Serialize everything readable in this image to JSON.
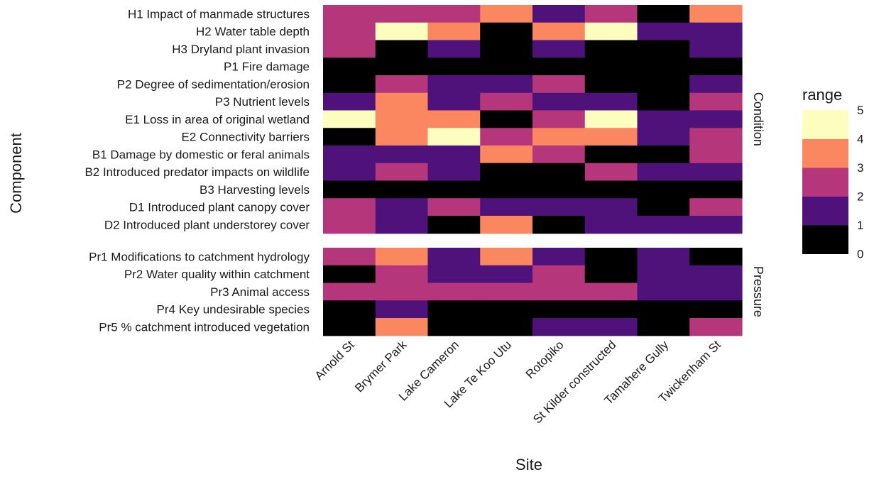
{
  "chart_data": {
    "type": "heatmap",
    "xlabel": "Site",
    "ylabel": "Component",
    "x": [
      "Arnold St",
      "Brymer Park",
      "Lake Cameron",
      "Lake Te Koo Utu",
      "Rotopiko",
      "St Kilder constructed",
      "Tamahere Gully",
      "Twickenham St"
    ],
    "panels": [
      {
        "name": "Condition",
        "rows": [
          {
            "label": "H1 Impact of manmade structures",
            "values": [
              2,
              2,
              2,
              3,
              1,
              2,
              0,
              3
            ]
          },
          {
            "label": "H2 Water table depth",
            "values": [
              2,
              4,
              3,
              0,
              3,
              4,
              1,
              1
            ]
          },
          {
            "label": "H3 Dryland plant invasion",
            "values": [
              2,
              0,
              1,
              0,
              1,
              0,
              0,
              1
            ]
          },
          {
            "label": "P1 Fire damage",
            "values": [
              0,
              0,
              0,
              0,
              0,
              0,
              0,
              0
            ]
          },
          {
            "label": "P2 Degree of sedimentation/erosion",
            "values": [
              0,
              2,
              1,
              1,
              2,
              0,
              0,
              1
            ]
          },
          {
            "label": "P3 Nutrient levels",
            "values": [
              1,
              3,
              1,
              2,
              1,
              1,
              0,
              2
            ]
          },
          {
            "label": "E1 Loss in area of original wetland",
            "values": [
              4,
              3,
              3,
              0,
              2,
              4,
              1,
              1
            ]
          },
          {
            "label": "E2 Connectivity barriers",
            "values": [
              0,
              3,
              4,
              2,
              3,
              3,
              1,
              2
            ]
          },
          {
            "label": "B1 Damage by domestic or feral animals",
            "values": [
              1,
              1,
              1,
              3,
              2,
              0,
              0,
              2
            ]
          },
          {
            "label": "B2 Introduced predator impacts on wildlife",
            "values": [
              1,
              2,
              1,
              0,
              0,
              2,
              1,
              1
            ]
          },
          {
            "label": "B3 Harvesting levels",
            "values": [
              0,
              0,
              0,
              0,
              0,
              0,
              0,
              0
            ]
          },
          {
            "label": "D1 Introduced plant canopy cover",
            "values": [
              2,
              1,
              2,
              1,
              1,
              1,
              0,
              2
            ]
          },
          {
            "label": "D2 Introduced plant understorey cover",
            "values": [
              2,
              1,
              0,
              3,
              0,
              1,
              1,
              1
            ]
          }
        ]
      },
      {
        "name": "Pressure",
        "rows": [
          {
            "label": "Pr1 Modifications to catchment hydrology",
            "values": [
              2,
              3,
              1,
              3,
              1,
              0,
              1,
              0
            ]
          },
          {
            "label": "Pr2 Water quality within catchment",
            "values": [
              0,
              2,
              1,
              1,
              2,
              0,
              1,
              1
            ]
          },
          {
            "label": "Pr3 Animal access",
            "values": [
              2,
              2,
              2,
              2,
              2,
              2,
              1,
              1
            ]
          },
          {
            "label": "Pr4 Key undesirable species",
            "values": [
              0,
              1,
              0,
              0,
              0,
              0,
              0,
              0
            ]
          },
          {
            "label": "Pr5 % catchment introduced vegetation",
            "values": [
              0,
              3,
              0,
              0,
              1,
              1,
              0,
              2
            ]
          }
        ]
      }
    ],
    "legend": {
      "title": "range",
      "ticks": [
        "5",
        "4",
        "3",
        "2",
        "1",
        "0"
      ],
      "bins": [
        {
          "range": [
            0,
            1
          ],
          "color": "#000000"
        },
        {
          "range": [
            1,
            2
          ],
          "color": "#4f127b"
        },
        {
          "range": [
            2,
            3
          ],
          "color": "#b5367a"
        },
        {
          "range": [
            3,
            4
          ],
          "color": "#fb8761"
        },
        {
          "range": [
            4,
            5
          ],
          "color": "#fcfdbf"
        }
      ]
    }
  }
}
